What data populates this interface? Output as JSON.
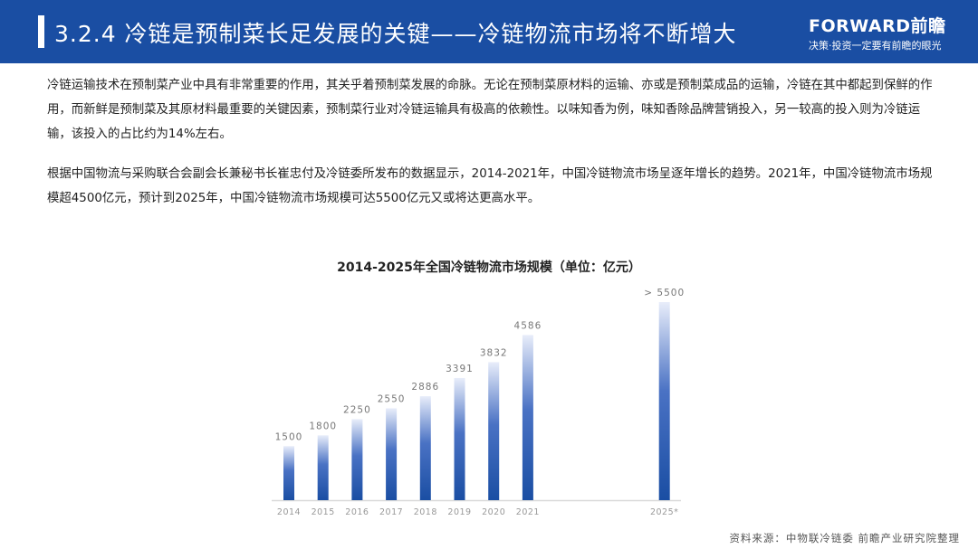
{
  "header": {
    "title": "3.2.4 冷链是预制菜长足发展的关键——冷链物流市场将不断增大",
    "logo_text": "FORWARD前瞻",
    "logo_slogan": "决策·投资一定要有前瞻的眼光"
  },
  "paragraphs": [
    "冷链运输技术在预制菜产业中具有非常重要的作用，其关乎着预制菜发展的命脉。无论在预制菜原材料的运输、亦或是预制菜成品的运输，冷链在其中都起到保鲜的作用，而新鲜是预制菜及其原材料最重要的关键因素，预制菜行业对冷链运输具有极高的依赖性。以味知香为例，味知香除品牌营销投入，另一较高的投入则为冷链运输，该投入的占比约为14%左右。",
    "根据中国物流与采购联合会副会长兼秘书长崔忠付及冷链委所发布的数据显示，2014-2021年，中国冷链物流市场呈逐年增长的趋势。2021年，中国冷链物流市场规模超4500亿元，预计到2025年，中国冷链物流市场规模可达5500亿元又或将达更高水平。"
  ],
  "chart_data": {
    "type": "bar",
    "title": "2014-2025年全国冷链物流市场规模（单位：亿元）",
    "categories": [
      "2014",
      "2015",
      "2016",
      "2017",
      "2018",
      "2019",
      "2020",
      "2021",
      "2025*"
    ],
    "values": [
      1500,
      1800,
      2250,
      2550,
      2886,
      3391,
      3832,
      4586,
      5500
    ],
    "labels": [
      "1500",
      "1800",
      "2250",
      "2550",
      "2886",
      "3391",
      "3832",
      "4586",
      "> 5500"
    ],
    "ylim": [
      0,
      5500
    ],
    "grid": false,
    "bar_color_top": "#e8edfa",
    "bar_color_bottom": "#1a4ea3"
  },
  "source": "资料来源：中物联冷链委  前瞻产业研究院整理"
}
